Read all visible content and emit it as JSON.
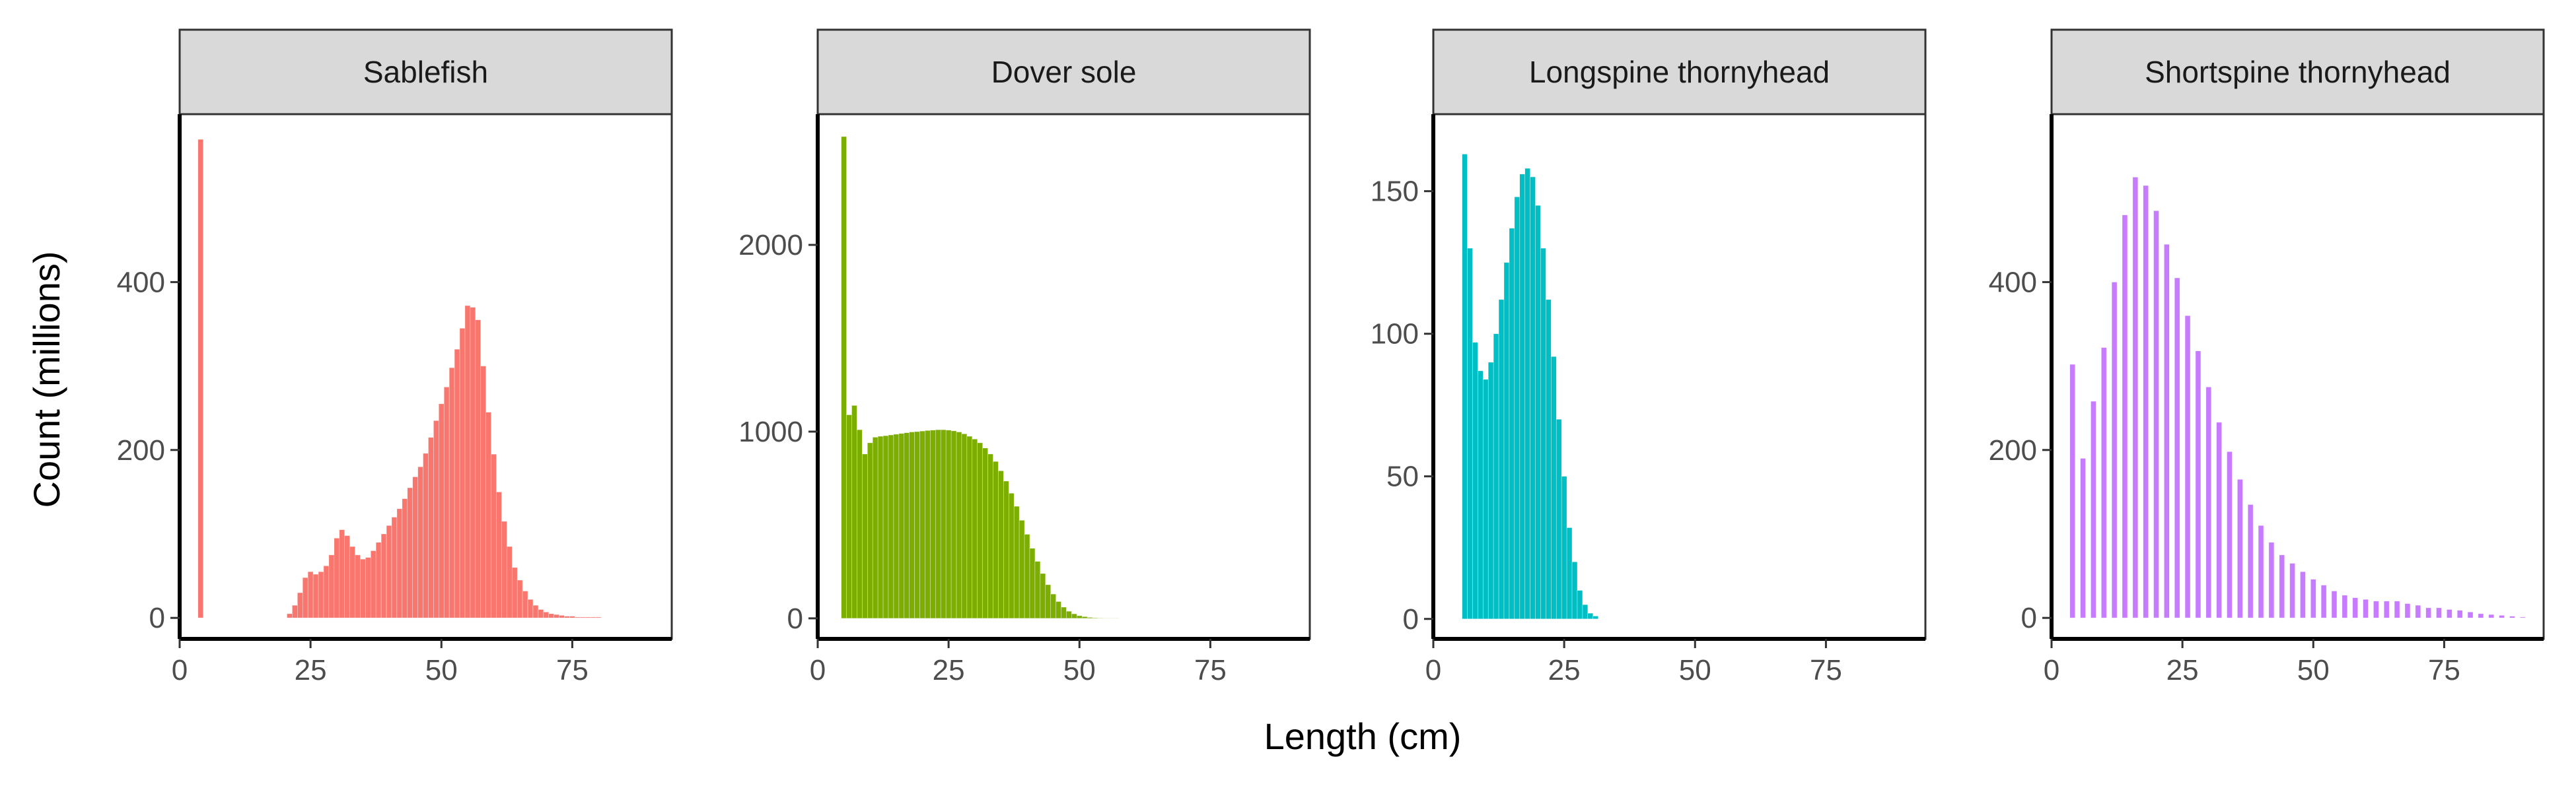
{
  "figure": {
    "xlabel": "Length (cm)",
    "ylabel": "Count (millions)",
    "background": "#ffffff",
    "strip_fill": "#d9d9d9",
    "strip_border": "#333333",
    "axis_color": "#000000",
    "panel_border": "#333333",
    "tick_label_color": "#4d4d4d"
  },
  "chart_data": [
    {
      "type": "bar",
      "title": "Sablefish",
      "color": "#f8766d",
      "xlim": [
        0,
        94
      ],
      "ylim": [
        -25,
        600
      ],
      "xticks": [
        0,
        25,
        50,
        75
      ],
      "yticks": [
        0,
        200,
        400
      ],
      "grid": false,
      "x": [
        4,
        21,
        22,
        23,
        24,
        25,
        26,
        27,
        28,
        29,
        30,
        31,
        32,
        33,
        34,
        35,
        36,
        37,
        38,
        39,
        40,
        41,
        42,
        43,
        44,
        45,
        46,
        47,
        48,
        49,
        50,
        51,
        52,
        53,
        54,
        55,
        56,
        57,
        58,
        59,
        60,
        61,
        62,
        63,
        64,
        65,
        66,
        67,
        68,
        69,
        70,
        71,
        72,
        73,
        74,
        75,
        76,
        77,
        78,
        79,
        80,
        81,
        82,
        83,
        84,
        85,
        86,
        87,
        88
      ],
      "values": [
        570,
        5,
        15,
        30,
        48,
        55,
        52,
        55,
        62,
        75,
        95,
        105,
        98,
        85,
        75,
        70,
        72,
        80,
        90,
        100,
        110,
        120,
        130,
        142,
        155,
        168,
        180,
        196,
        215,
        235,
        255,
        275,
        298,
        320,
        345,
        372,
        370,
        355,
        300,
        245,
        195,
        150,
        115,
        85,
        60,
        45,
        32,
        22,
        15,
        10,
        7,
        5,
        4,
        3,
        2,
        2,
        1,
        1,
        1,
        1,
        1,
        0,
        0,
        0,
        0,
        0,
        0,
        0,
        0
      ]
    },
    {
      "type": "bar",
      "title": "Dover sole",
      "color": "#7cae00",
      "xlim": [
        0,
        94
      ],
      "ylim": [
        -110,
        2700
      ],
      "xticks": [
        0,
        25,
        50,
        75
      ],
      "yticks": [
        0,
        1000,
        2000
      ],
      "grid": false,
      "x": [
        5,
        6,
        7,
        8,
        9,
        10,
        11,
        12,
        13,
        14,
        15,
        16,
        17,
        18,
        19,
        20,
        21,
        22,
        23,
        24,
        25,
        26,
        27,
        28,
        29,
        30,
        31,
        32,
        33,
        34,
        35,
        36,
        37,
        38,
        39,
        40,
        41,
        42,
        43,
        44,
        45,
        46,
        47,
        48,
        49,
        50,
        51,
        52,
        53,
        54,
        55,
        56,
        57,
        58,
        59,
        60
      ],
      "values": [
        2580,
        1090,
        1140,
        1010,
        880,
        940,
        970,
        975,
        978,
        982,
        986,
        990,
        994,
        998,
        1000,
        1003,
        1006,
        1008,
        1010,
        1010,
        1008,
        1004,
        998,
        988,
        975,
        960,
        940,
        912,
        880,
        840,
        790,
        735,
        670,
        600,
        525,
        450,
        375,
        305,
        240,
        180,
        130,
        90,
        60,
        38,
        24,
        14,
        9,
        5,
        3,
        2,
        1,
        1,
        1,
        0,
        0,
        0
      ]
    },
    {
      "type": "bar",
      "title": "Longspine thornyhead",
      "color": "#00bfc4",
      "xlim": [
        0,
        94
      ],
      "ylim": [
        -7,
        177
      ],
      "xticks": [
        0,
        25,
        50,
        75
      ],
      "yticks": [
        0,
        50,
        100,
        150
      ],
      "grid": false,
      "x": [
        6,
        7,
        8,
        9,
        10,
        11,
        12,
        13,
        14,
        15,
        16,
        17,
        18,
        19,
        20,
        21,
        22,
        23,
        24,
        25,
        26,
        27,
        28,
        29,
        30,
        31
      ],
      "values": [
        163,
        130,
        97,
        87,
        84,
        90,
        100,
        112,
        125,
        137,
        148,
        156,
        158,
        155,
        145,
        130,
        112,
        92,
        70,
        50,
        32,
        20,
        10,
        5,
        2,
        1
      ]
    },
    {
      "type": "bar",
      "title": "Shortspine thornyhead",
      "color": "#c77cff",
      "xlim": [
        0,
        94
      ],
      "ylim": [
        -25,
        600
      ],
      "xticks": [
        0,
        25,
        50,
        75
      ],
      "yticks": [
        0,
        200,
        400
      ],
      "grid": false,
      "x": [
        4,
        6,
        8,
        10,
        12,
        14,
        16,
        18,
        20,
        22,
        24,
        26,
        28,
        30,
        32,
        34,
        36,
        38,
        40,
        42,
        44,
        46,
        48,
        50,
        52,
        54,
        56,
        58,
        60,
        62,
        64,
        66,
        68,
        70,
        72,
        74,
        76,
        78,
        80,
        82,
        84,
        86,
        88,
        90
      ],
      "values": [
        302,
        190,
        258,
        322,
        400,
        480,
        525,
        515,
        485,
        445,
        405,
        360,
        318,
        275,
        233,
        198,
        165,
        135,
        110,
        90,
        75,
        65,
        55,
        46,
        39,
        32,
        27,
        24,
        22,
        20,
        20,
        20,
        17,
        15,
        12,
        12,
        10,
        9,
        7,
        5,
        4,
        3,
        2,
        1
      ]
    }
  ]
}
